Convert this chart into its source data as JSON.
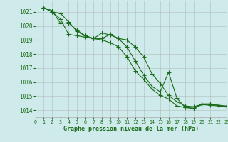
{
  "background_color": "#ceeaea",
  "grid_color": "#aaaaaa",
  "line_color": "#1a6b1a",
  "xlabel": "Graphe pression niveau de la mer (hPa)",
  "xlim": [
    0,
    23
  ],
  "ylim": [
    1013.5,
    1021.8
  ],
  "yticks": [
    1014,
    1015,
    1016,
    1017,
    1018,
    1019,
    1020,
    1021
  ],
  "xticks": [
    0,
    1,
    2,
    3,
    4,
    5,
    6,
    7,
    8,
    9,
    10,
    11,
    12,
    13,
    14,
    15,
    16,
    17,
    18,
    19,
    20,
    21,
    22,
    23
  ],
  "series": [
    [
      1021.3,
      1021.1,
      1020.2,
      1020.2,
      1019.7,
      1019.3,
      1019.1,
      1019.1,
      1019.4,
      1019.1,
      1019.0,
      1018.5,
      1017.8,
      1016.6,
      1015.9,
      1015.05,
      1014.6,
      1014.3,
      1014.25,
      1014.4,
      1014.4,
      1014.35,
      1014.3
    ],
    [
      1021.3,
      1021.0,
      1020.9,
      1020.3,
      1019.6,
      1019.3,
      1019.1,
      1019.0,
      1018.8,
      1018.5,
      1017.8,
      1016.8,
      1016.2,
      1015.5,
      1015.05,
      1014.8,
      1014.3,
      1014.2,
      1014.1,
      1014.4,
      1014.35,
      1014.3,
      1014.25
    ],
    [
      1021.3,
      1021.0,
      1020.5,
      1019.4,
      1019.3,
      1019.2,
      1019.1,
      1019.5,
      1019.35,
      1019.1,
      1018.5,
      1017.5,
      1016.5,
      1015.7,
      1015.3,
      1016.7,
      1014.85,
      1014.2,
      1014.15,
      1014.45,
      1014.45,
      1014.35,
      1014.25
    ]
  ],
  "marker": "+",
  "markersize": 4,
  "linewidth": 0.8
}
